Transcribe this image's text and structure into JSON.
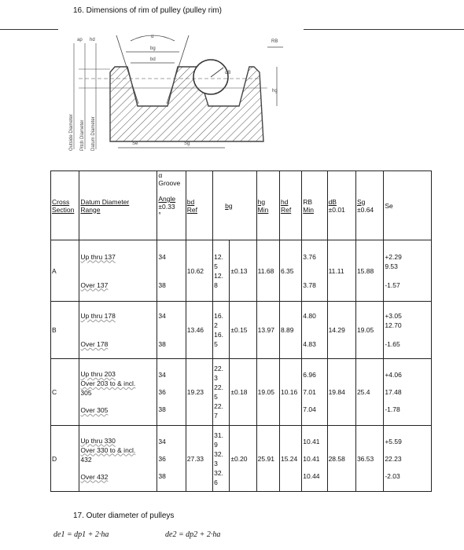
{
  "section16": {
    "title": "16. Dimensions of rim of pulley (pulley rim)"
  },
  "diagram": {
    "labels": {
      "ap": "ap",
      "hd": "hd",
      "alpha": "α",
      "bg": "bg",
      "bd": "bd",
      "dB": "dB",
      "RB": "RB",
      "hg": "hg",
      "Se": "Se",
      "Sg": "Sg",
      "outside": "Outside Diameter",
      "pitch": "Pitch Diameter",
      "datum": "Datum Diameter"
    }
  },
  "table": {
    "headers": {
      "cross": "Cross",
      "section": "Section",
      "datum1": "Datum Diameter",
      "datum2": "Range",
      "alpha": "α",
      "groove": "Groove",
      "angle": "Angle",
      "angle_tol": "±0.33",
      "angle_mark": "°",
      "bd": "bd",
      "bd_ref": "Ref",
      "bg": "bg",
      "hg": "hg",
      "hg_min": "Min",
      "hd": "hd",
      "hd_ref": "Ref",
      "rb": "RB",
      "rb_min": "Min",
      "db": "dB",
      "db_tol": "±0.01",
      "sg": "Sg",
      "sg_tol": "±0.64",
      "se": "Se"
    },
    "rows": [
      {
        "section": "A",
        "ranges": [
          "Up thru 137",
          "Over 137"
        ],
        "angles": [
          "34",
          "38"
        ],
        "bd": "10.62",
        "bg_vals": [
          "12.",
          "5",
          "12.",
          "8"
        ],
        "bg_tol": "±0.13",
        "hg": "11.68",
        "hd": "6.35",
        "rb": [
          "3.76",
          "3.78"
        ],
        "db": "11.11",
        "sg": "15.88",
        "se": [
          "+2.29",
          "9.53",
          "-1.57"
        ]
      },
      {
        "section": "B",
        "ranges": [
          "Up thru 178",
          "Over 178"
        ],
        "angles": [
          "34",
          "38"
        ],
        "bd": "13.46",
        "bg_vals": [
          "16.",
          "2",
          "16.",
          "5"
        ],
        "bg_tol": "±0.15",
        "hg": "13.97",
        "hd": "8.89",
        "rb": [
          "4.80",
          "4.83"
        ],
        "db": "14.29",
        "sg": "19.05",
        "se": [
          "+3.05",
          "12.70",
          "-1.65"
        ]
      },
      {
        "section": "C",
        "ranges": [
          "Up thru 203",
          "Over 203 to & incl.",
          "305",
          "Over 305"
        ],
        "angles": [
          "34",
          "36",
          "38"
        ],
        "bd": "19.23",
        "bg_vals": [
          "22.",
          "3",
          "22.",
          "5",
          "22.",
          "7"
        ],
        "bg_tol": "±0.18",
        "hg": "19.05",
        "hd": "10.16",
        "rb": [
          "6.96",
          "7.01",
          "7.04"
        ],
        "db": "19.84",
        "sg": "25.4",
        "se": [
          "+4.06",
          "17.48",
          "-1.78"
        ]
      },
      {
        "section": "D",
        "ranges": [
          "Up thru 330",
          "Over 330 to & incl.",
          "432",
          "Over 432"
        ],
        "angles": [
          "34",
          "36",
          "38"
        ],
        "bd": "27.33",
        "bg_vals": [
          "31.",
          "9",
          "32.",
          "3",
          "32.",
          "6"
        ],
        "bg_tol": "±0.20",
        "hg": "25.91",
        "hd": "15.24",
        "rb": [
          "10.41",
          "10.41",
          "10.44"
        ],
        "db": "28.58",
        "sg": "36.53",
        "se": [
          "+5.59",
          "22.23",
          "-2.03"
        ]
      }
    ]
  },
  "section17": {
    "title": "17. Outer diameter of pulleys",
    "formula1": "de1 = dp1 + 2·ha",
    "formula2": "de2 = dp2 + 2·ha"
  }
}
